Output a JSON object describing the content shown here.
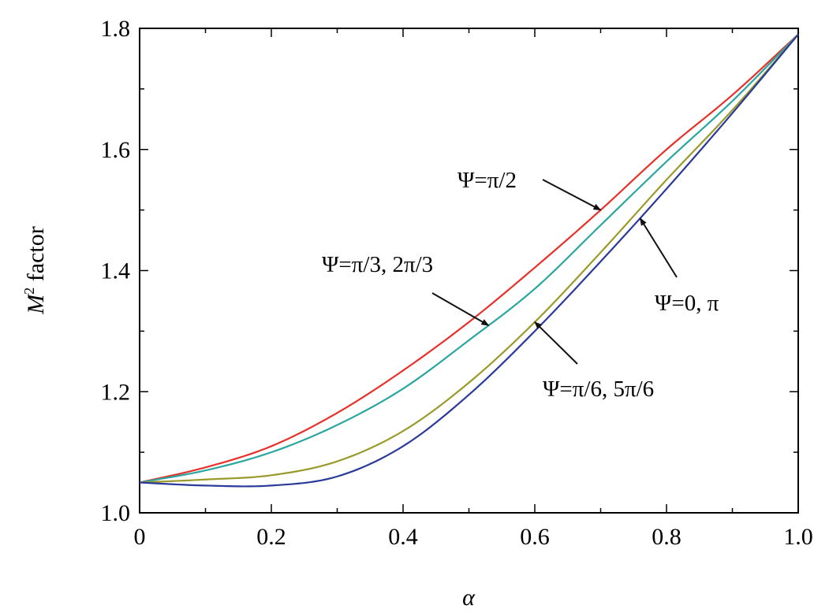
{
  "chart_data": {
    "type": "line",
    "title": "",
    "xlabel": "α",
    "ylabel": "M² factor",
    "ylabel_base": "M",
    "ylabel_sup": "2",
    "ylabel_rest": " factor",
    "xlim": [
      0,
      1.0
    ],
    "ylim": [
      1.0,
      1.8
    ],
    "x_ticks": [
      "0",
      "0.2",
      "0.4",
      "0.6",
      "0.8",
      "1.0"
    ],
    "x_tick_values": [
      0,
      0.2,
      0.4,
      0.6,
      0.8,
      1.0
    ],
    "y_ticks": [
      "1.0",
      "1.2",
      "1.4",
      "1.6",
      "1.8"
    ],
    "y_tick_values": [
      1.0,
      1.2,
      1.4,
      1.6,
      1.8
    ],
    "grid": false,
    "x": [
      0,
      0.1,
      0.2,
      0.3,
      0.4,
      0.5,
      0.6,
      0.7,
      0.8,
      0.9,
      1.0
    ],
    "series": [
      {
        "label": "Ψ=π/2",
        "color": "#e8302a",
        "values": [
          1.05,
          1.075,
          1.11,
          1.165,
          1.235,
          1.315,
          1.405,
          1.5,
          1.6,
          1.69,
          1.79
        ]
      },
      {
        "label": "Ψ=π/3, 2π/3",
        "color": "#2aa6a0",
        "values": [
          1.05,
          1.07,
          1.1,
          1.145,
          1.205,
          1.285,
          1.37,
          1.475,
          1.58,
          1.68,
          1.79
        ]
      },
      {
        "label": "Ψ=π/6, 5π/6",
        "color": "#9a9a2a",
        "values": [
          1.05,
          1.055,
          1.062,
          1.085,
          1.135,
          1.215,
          1.315,
          1.43,
          1.55,
          1.665,
          1.79
        ]
      },
      {
        "label": "Ψ=0, π",
        "color": "#2a3a9a",
        "values": [
          1.05,
          1.045,
          1.045,
          1.06,
          1.11,
          1.195,
          1.3,
          1.415,
          1.535,
          1.66,
          1.79
        ]
      }
    ],
    "annotations": [
      {
        "text": "Ψ=π/2",
        "series": 0,
        "at_x": 0.7
      },
      {
        "text": "Ψ=π/3, 2π/3",
        "series": 1,
        "at_x": 0.53
      },
      {
        "text": "Ψ=π/6, 5π/6",
        "series": 2,
        "at_x": 0.6
      },
      {
        "text": "Ψ=0, π",
        "series": 3,
        "at_x": 0.76
      }
    ]
  }
}
